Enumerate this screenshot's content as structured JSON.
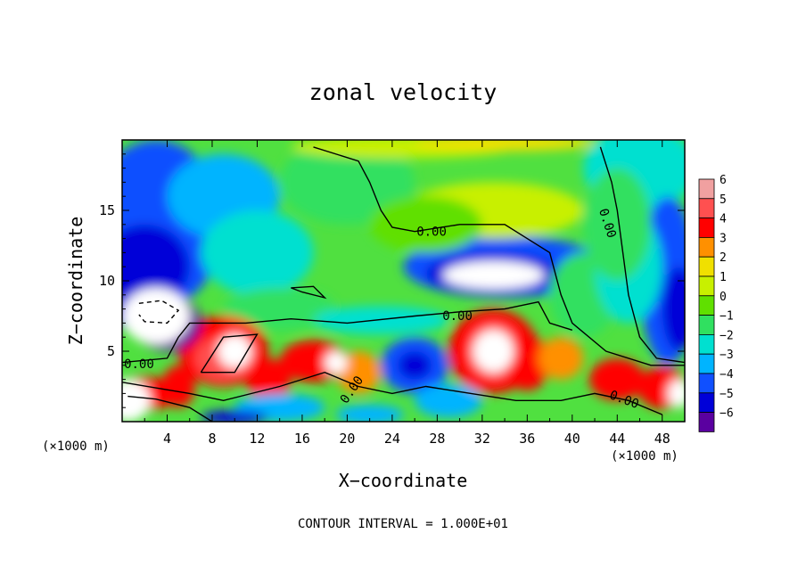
{
  "chart_data": {
    "type": "heatmap",
    "title": "zonal velocity",
    "xlabel": "X−coordinate",
    "ylabel": "Z−coordinate",
    "x_unit_left": "(×1000 m)",
    "x_unit_right": "(×1000 m)",
    "x_ticks": [
      "4",
      "8",
      "12",
      "16",
      "20",
      "24",
      "28",
      "32",
      "36",
      "40",
      "44",
      "48"
    ],
    "y_ticks": [
      "5",
      "10",
      "15"
    ],
    "xlim": [
      0,
      50
    ],
    "ylim": [
      0,
      20
    ],
    "colorbar": {
      "levels": [
        "6",
        "5",
        "4",
        "3",
        "2",
        "1",
        "0",
        "−1",
        "−2",
        "−3",
        "−4",
        "−5",
        "−6"
      ],
      "colors": [
        "#f0a0a0",
        "#ff5050",
        "#ff0000",
        "#ff9000",
        "#f0e000",
        "#c8f000",
        "#60e000",
        "#30e060",
        "#00e0d0",
        "#00b4ff",
        "#1050ff",
        "#0000d8",
        "#5a00a0"
      ]
    },
    "contour_labels": [
      "0.00",
      "0.00",
      "0.00",
      "0.00",
      "0.00",
      "0.00"
    ],
    "contour_interval_text": "CONTOUR INTERVAL = 1.000E+01"
  }
}
